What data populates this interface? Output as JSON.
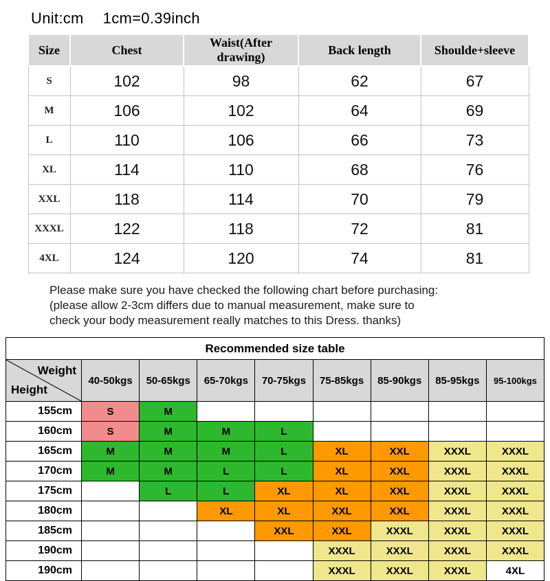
{
  "header": {
    "unit": "Unit:cm",
    "conversion": "1cm=0.39inch"
  },
  "notice": {
    "line1": "Please make sure you have checked the following chart before purchasing:",
    "line2": "(please allow 2-3cm differs due to manual measurement, make sure to",
    "line3": "check your body measurement really matches to this Dress. thanks)"
  },
  "chart_data": [
    {
      "type": "table",
      "name": "size_measurements",
      "unit": "cm",
      "columns": [
        "Size",
        "Chest",
        "Waist(After drawing)",
        "Back length",
        "Shoulde+sleeve"
      ],
      "rows": [
        [
          "S",
          "102",
          "98",
          "62",
          "67"
        ],
        [
          "M",
          "106",
          "102",
          "64",
          "69"
        ],
        [
          "L",
          "110",
          "106",
          "66",
          "73"
        ],
        [
          "XL",
          "114",
          "110",
          "68",
          "76"
        ],
        [
          "XXL",
          "118",
          "114",
          "70",
          "79"
        ],
        [
          "XXXL",
          "122",
          "118",
          "72",
          "81"
        ],
        [
          "4XL",
          "124",
          "120",
          "74",
          "81"
        ]
      ]
    },
    {
      "type": "table",
      "name": "recommended_sizes",
      "title": "Recommended size table",
      "corner": {
        "top_label": "Weight",
        "bottom_label": "Height"
      },
      "weight_columns": [
        "40-50kgs",
        "50-65kgs",
        "65-70kgs",
        "70-75kgs",
        "75-85kgs",
        "85-90kgs",
        "85-95kgs",
        "95-100kgs"
      ],
      "rows": [
        {
          "height": "155cm",
          "cells": [
            {
              "size": "S",
              "color": "pink"
            },
            {
              "size": "M",
              "color": "green"
            },
            null,
            null,
            null,
            null,
            null,
            null
          ]
        },
        {
          "height": "160cm",
          "cells": [
            {
              "size": "S",
              "color": "pink"
            },
            {
              "size": "M",
              "color": "green"
            },
            {
              "size": "M",
              "color": "green"
            },
            {
              "size": "L",
              "color": "green"
            },
            null,
            null,
            null,
            null
          ]
        },
        {
          "height": "165cm",
          "cells": [
            {
              "size": "M",
              "color": "green"
            },
            {
              "size": "M",
              "color": "green"
            },
            {
              "size": "M",
              "color": "green"
            },
            {
              "size": "L",
              "color": "green"
            },
            {
              "size": "XL",
              "color": "orange"
            },
            {
              "size": "XXL",
              "color": "orange"
            },
            {
              "size": "XXXL",
              "color": "yellow"
            },
            {
              "size": "XXXL",
              "color": "yellow"
            }
          ]
        },
        {
          "height": "170cm",
          "cells": [
            {
              "size": "M",
              "color": "green"
            },
            {
              "size": "M",
              "color": "green"
            },
            {
              "size": "L",
              "color": "green"
            },
            {
              "size": "L",
              "color": "green"
            },
            {
              "size": "XL",
              "color": "orange"
            },
            {
              "size": "XXL",
              "color": "orange"
            },
            {
              "size": "XXXL",
              "color": "yellow"
            },
            {
              "size": "XXXL",
              "color": "yellow"
            }
          ]
        },
        {
          "height": "175cm",
          "cells": [
            null,
            {
              "size": "L",
              "color": "green"
            },
            {
              "size": "L",
              "color": "green"
            },
            {
              "size": "XL",
              "color": "orange"
            },
            {
              "size": "XL",
              "color": "orange"
            },
            {
              "size": "XXL",
              "color": "orange"
            },
            {
              "size": "XXXL",
              "color": "yellow"
            },
            {
              "size": "XXXL",
              "color": "yellow"
            }
          ]
        },
        {
          "height": "180cm",
          "cells": [
            null,
            null,
            {
              "size": "XL",
              "color": "orange"
            },
            {
              "size": "XL",
              "color": "orange"
            },
            {
              "size": "XXL",
              "color": "orange"
            },
            {
              "size": "XXL",
              "color": "orange"
            },
            {
              "size": "XXXL",
              "color": "yellow"
            },
            {
              "size": "XXXL",
              "color": "yellow"
            }
          ]
        },
        {
          "height": "185cm",
          "cells": [
            null,
            null,
            null,
            {
              "size": "XXL",
              "color": "orange"
            },
            {
              "size": "XXL",
              "color": "orange"
            },
            {
              "size": "XXXL",
              "color": "yellow"
            },
            {
              "size": "XXXL",
              "color": "yellow"
            },
            {
              "size": "XXXL",
              "color": "yellow"
            }
          ]
        },
        {
          "height": "190cm",
          "cells": [
            null,
            null,
            null,
            null,
            {
              "size": "XXXL",
              "color": "yellow"
            },
            {
              "size": "XXXL",
              "color": "yellow"
            },
            {
              "size": "XXXL",
              "color": "yellow"
            },
            {
              "size": "XXXL",
              "color": "yellow"
            }
          ]
        },
        {
          "height": "190cm",
          "cells": [
            null,
            null,
            null,
            null,
            {
              "size": "XXXL",
              "color": "yellow"
            },
            {
              "size": "XXXL",
              "color": "yellow"
            },
            {
              "size": "XXXL",
              "color": "yellow"
            },
            {
              "size": "4XL",
              "color": "white"
            }
          ]
        }
      ]
    }
  ],
  "colors": {
    "pink": "#f28b8b",
    "green": "#2eb82e",
    "orange": "#ff9900",
    "yellow": "#f0e68c",
    "white": "#ffffff",
    "header_gray": "#d8d8d8"
  }
}
